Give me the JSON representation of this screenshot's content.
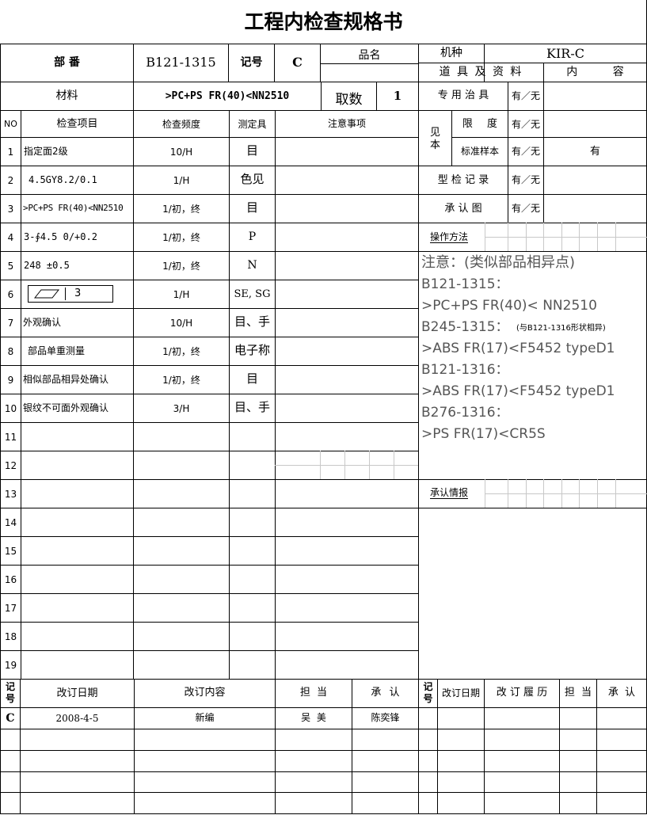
{
  "title": "工程内检查规格书",
  "header": {
    "part_no_label": "部 番",
    "part_no": "B121-1315",
    "revision_label": "记号",
    "revision": "C",
    "product_name_label": "品名",
    "model_label": "机种",
    "model": "KIR-C",
    "tooling_label": "道 具 及 资 料",
    "content_label": "内 容",
    "material_label": "材料",
    "material": ">PC+PS FR(40)<NN2510",
    "cavity_label": "取数",
    "cavity": "1"
  },
  "tooling": [
    {
      "label": "专 用 治 具",
      "yn": "有／无",
      "content": ""
    },
    {
      "label": "限 度",
      "yn": "有／无",
      "content": ""
    },
    {
      "label": "标准样本",
      "yn": "有／无",
      "content": "有"
    },
    {
      "label": "型 检 记 录",
      "yn": "有／无",
      "content": ""
    },
    {
      "label": "承 认 图",
      "yn": "有／无",
      "content": ""
    }
  ],
  "sample_group_label": "见本",
  "inspection_table": {
    "headers": [
      "NO",
      "检查项目",
      "检查频度",
      "测定具",
      "注意事项"
    ],
    "rows": [
      {
        "no": "1",
        "item": "指定面2级",
        "freq": "10/H",
        "tool": "目",
        "note": ""
      },
      {
        "no": "2",
        "item": "4.5GY8.2/0.1",
        "freq": "1/H",
        "tool": "色见",
        "note": ""
      },
      {
        "no": "3",
        "item": ">PC+PS FR(40)<NN2510",
        "freq": "1/初，终",
        "tool": "目",
        "note": ""
      },
      {
        "no": "4",
        "item": "3-∮4.5 0/+0.2",
        "freq": "1/初，终",
        "tool": "P",
        "note": ""
      },
      {
        "no": "5",
        "item": "248 ±0.5",
        "freq": "1/初，终",
        "tool": "N",
        "note": ""
      },
      {
        "no": "6",
        "item": "3",
        "freq": "1/H",
        "tool": "SE, SG",
        "note": ""
      },
      {
        "no": "7",
        "item": "外观确认",
        "freq": "10/H",
        "tool": "目、手",
        "note": ""
      },
      {
        "no": "8",
        "item": "部品单重测量",
        "freq": "1/初，终",
        "tool": "电子称",
        "note": ""
      },
      {
        "no": "9",
        "item": "相似部品相异处确认",
        "freq": "1/初，终",
        "tool": "目",
        "note": ""
      },
      {
        "no": "10",
        "item": "银纹不可面外观确认",
        "freq": "3/H",
        "tool": "目、手",
        "note": ""
      },
      {
        "no": "11",
        "item": "",
        "freq": "",
        "tool": "",
        "note": ""
      },
      {
        "no": "12",
        "item": "",
        "freq": "",
        "tool": "",
        "note": ""
      },
      {
        "no": "13",
        "item": "",
        "freq": "",
        "tool": "",
        "note": ""
      },
      {
        "no": "14",
        "item": "",
        "freq": "",
        "tool": "",
        "note": ""
      },
      {
        "no": "15",
        "item": "",
        "freq": "",
        "tool": "",
        "note": ""
      },
      {
        "no": "16",
        "item": "",
        "freq": "",
        "tool": "",
        "note": ""
      },
      {
        "no": "17",
        "item": "",
        "freq": "",
        "tool": "",
        "note": ""
      },
      {
        "no": "18",
        "item": "",
        "freq": "",
        "tool": "",
        "note": ""
      },
      {
        "no": "19",
        "item": "",
        "freq": "",
        "tool": "",
        "note": ""
      }
    ]
  },
  "operation": {
    "label": "操作方法",
    "lines": [
      {
        "text": "注意：(类似部品相异点)",
        "small": ""
      },
      {
        "text": "B121-1315：",
        "small": ""
      },
      {
        "text": ">PC+PS FR(40)< NN2510",
        "small": ""
      },
      {
        "text": "B245-1315：",
        "small": "(与B121-1316形状相异)"
      },
      {
        "text": ">ABS FR(17)<F5452 typeD1",
        "small": ""
      },
      {
        "text": "B121-1316：",
        "small": ""
      },
      {
        "text": ">ABS FR(17)<F5452 typeD1",
        "small": ""
      },
      {
        "text": "B276-1316：",
        "small": ""
      },
      {
        "text": ">PS FR(17)<CR5S",
        "small": ""
      }
    ]
  },
  "approval_info_label": "承认情报",
  "revision_history": {
    "left_headers": [
      "记号",
      "改订日期",
      "改订内容",
      "担 当",
      "承 认"
    ],
    "right_headers": [
      "记号",
      "改订日期",
      "改 订 履 历",
      "担 当",
      "承 认"
    ],
    "rows": [
      {
        "mark": "C",
        "date": "2008-4-5",
        "content": "新编",
        "person": "吴 美",
        "approver": "陈奕锋"
      }
    ]
  }
}
